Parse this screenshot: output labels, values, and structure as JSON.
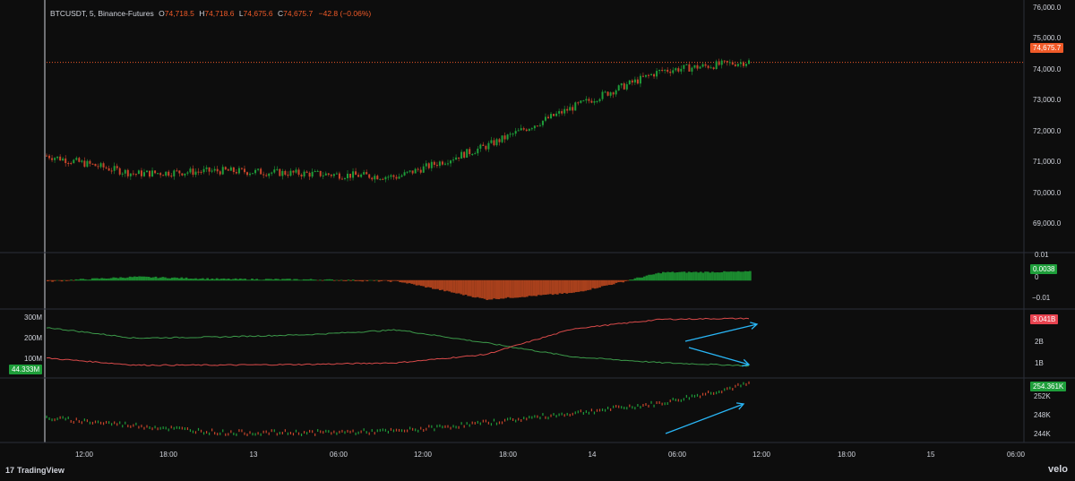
{
  "header": {
    "symbol": "BTCUSDT, 5, Binance-Futures",
    "o_label": "O",
    "o_value": "74,718.5",
    "h_label": "H",
    "h_value": "74,718.6",
    "l_label": "L",
    "l_value": "74,675.6",
    "c_label": "C",
    "c_value": "74,675.7",
    "change": "−42.8 (−0.06%)"
  },
  "price_axis": [
    "76,000.0",
    "75,000.0",
    "74,000.0",
    "73,000.0",
    "72,000.0",
    "71,000.0",
    "70,000.0",
    "69,000.0"
  ],
  "price_tag": "74,675.7",
  "pane2_axis": [
    "0.01",
    "0",
    "−0.01"
  ],
  "pane2_tag": "0.0038",
  "pane3_left_axis": [
    "300M",
    "200M",
    "100M"
  ],
  "pane3_left_tag": "44.333M",
  "pane3_right_axis": [
    "2B",
    "1B"
  ],
  "pane3_right_tag": "3.041B",
  "pane4_axis": [
    "252K",
    "248K",
    "244K"
  ],
  "pane4_tag": "254.361K",
  "time_axis": [
    "12:00",
    "18:00",
    "13",
    "06:00",
    "12:00",
    "18:00",
    "14",
    "06:00",
    "12:00",
    "18:00",
    "15",
    "06:00"
  ],
  "footer": {
    "brand": "TradingView",
    "brand_mark": "17",
    "velo": "velo"
  },
  "colors": {
    "background": "#0d0d0d",
    "up": "#1e9e3a",
    "down": "#c8452b",
    "price_tag": "#f05a28",
    "green_tag": "#1e9e3a",
    "red_tag": "#e8434f",
    "arrow": "#29b6f6"
  },
  "chart_data": [
    {
      "type": "line",
      "name_hint": "candlestick price",
      "x": [
        "12:00",
        "18:00",
        "13",
        "06:00",
        "12:00",
        "18:00",
        "14",
        "06:00",
        "12:00"
      ],
      "values": [
        71600,
        71000,
        71100,
        71000,
        70900,
        71900,
        73200,
        74400,
        74700
      ],
      "ylim": [
        68400,
        76200
      ],
      "last": 74675.7
    },
    {
      "type": "area",
      "x": [
        "12:00",
        "18:00",
        "13",
        "06:00",
        "12:00",
        "18:00",
        "14",
        "06:00",
        "12:00"
      ],
      "values": [
        -0.0004,
        0.0015,
        0.0005,
        0.0003,
        -0.0004,
        -0.0085,
        -0.0055,
        0.0035,
        0.0038
      ],
      "ylim": [
        -0.013,
        0.012
      ]
    },
    {
      "type": "line",
      "series": [
        {
          "color": "green",
          "values": [
            2.65,
            2.2,
            2.25,
            2.35,
            2.55,
            2.0,
            1.4,
            1.15,
            1.02
          ]
        },
        {
          "color": "red",
          "values": [
            1.35,
            1.05,
            1.05,
            1.08,
            1.15,
            1.5,
            2.6,
            3.0,
            3.04
          ]
        }
      ],
      "ylim": [
        0.5,
        3.4
      ]
    },
    {
      "type": "line",
      "values": [
        247.5,
        246.0,
        244.5,
        244.5,
        244.8,
        246.5,
        248.5,
        250.5,
        254.4
      ],
      "ylim": [
        242.5,
        255.5
      ]
    }
  ]
}
